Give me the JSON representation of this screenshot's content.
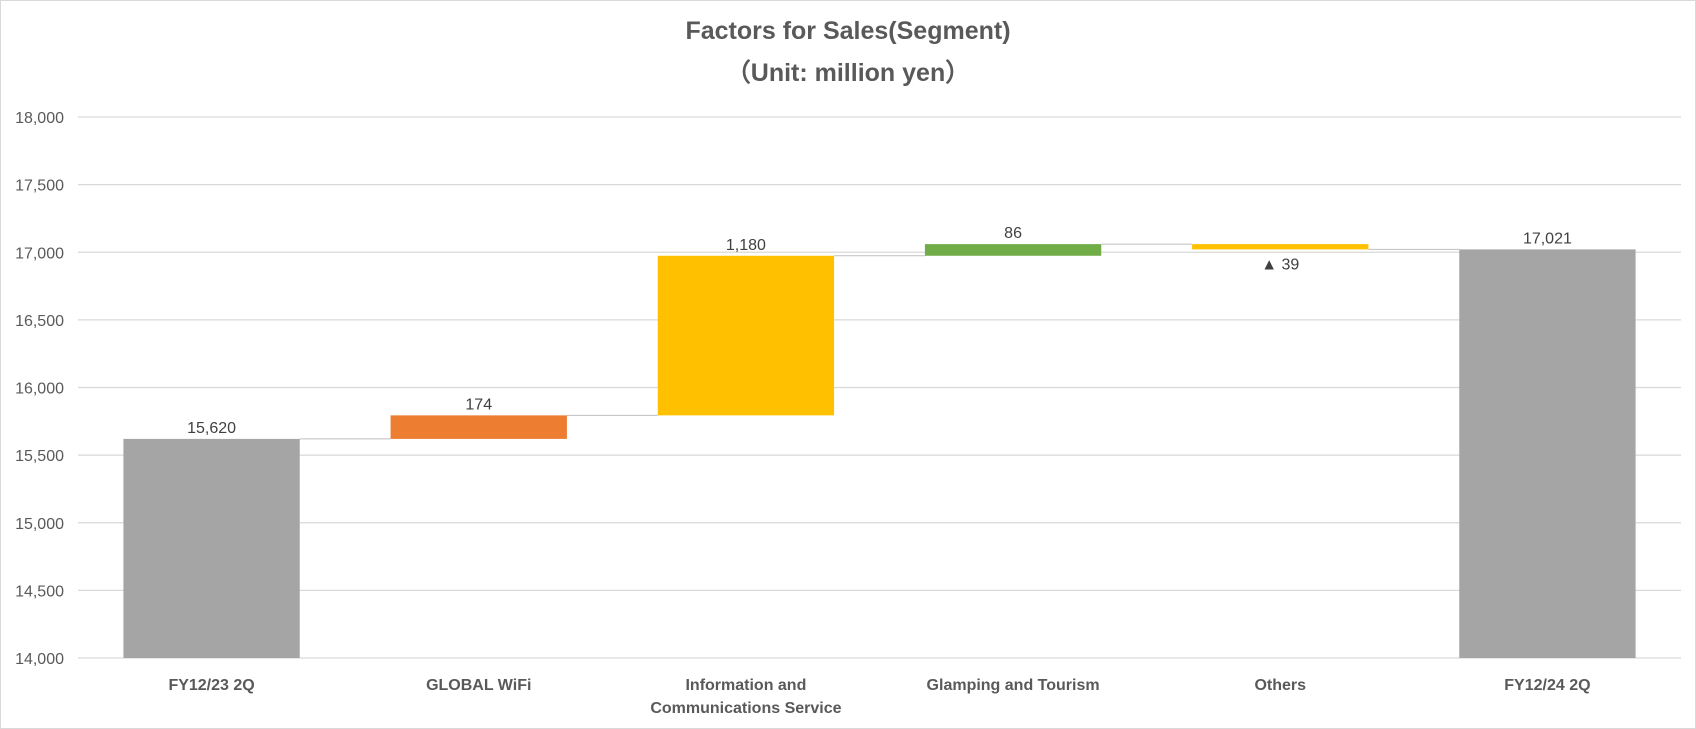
{
  "chart_data": {
    "type": "bar",
    "subtype": "waterfall",
    "title": "Factors for Sales(Segment)",
    "subtitle": "（Unit: million yen）",
    "xlabel": "",
    "ylabel": "",
    "ylim": [
      14000,
      18000
    ],
    "yticks": [
      "14,000",
      "14,500",
      "15,000",
      "15,500",
      "16,000",
      "16,500",
      "17,000",
      "17,500",
      "18,000"
    ],
    "grid": true,
    "categories": [
      [
        "FY12/23 2Q"
      ],
      [
        "GLOBAL WiFi"
      ],
      [
        "Information and",
        "Communications Service"
      ],
      [
        "Glamping and Tourism"
      ],
      [
        "Others"
      ],
      [
        "FY12/24 2Q"
      ]
    ],
    "bars": [
      {
        "kind": "total",
        "start": 14000,
        "end": 15620,
        "label": "15,620",
        "color": "#a5a5a5"
      },
      {
        "kind": "increase",
        "start": 15620,
        "end": 15794,
        "label": "174",
        "color": "#ed7d31"
      },
      {
        "kind": "increase",
        "start": 15794,
        "end": 16974,
        "label": "1,180",
        "color": "#ffc000"
      },
      {
        "kind": "increase",
        "start": 16974,
        "end": 17060,
        "label": "86",
        "color": "#70ad47"
      },
      {
        "kind": "decrease",
        "start": 17060,
        "end": 17021,
        "label": "▲ 39",
        "color": "#ffc000"
      },
      {
        "kind": "total",
        "start": 14000,
        "end": 17021,
        "label": "17,021",
        "color": "#a5a5a5"
      }
    ]
  }
}
